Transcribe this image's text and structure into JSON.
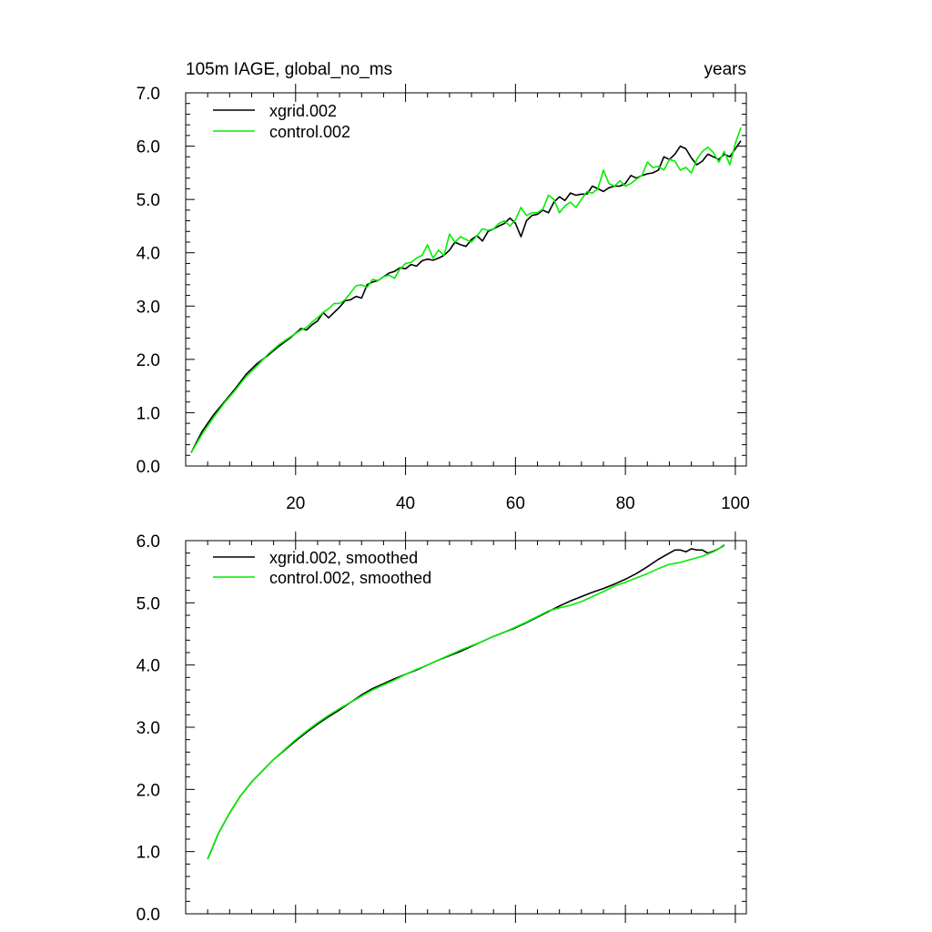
{
  "chart_data": [
    {
      "type": "line",
      "title_left": "105m IAGE, global_no_ms",
      "title_right": "years",
      "xlabel": "",
      "ylabel": "",
      "xlim": [
        0,
        102
      ],
      "ylim": [
        0,
        7
      ],
      "x_ticks": [
        20,
        40,
        60,
        80,
        100
      ],
      "x_tick_labels": [
        "20",
        "40",
        "60",
        "80",
        "100"
      ],
      "y_ticks": [
        0,
        1,
        2,
        3,
        4,
        5,
        6,
        7
      ],
      "y_tick_labels": [
        "0.0",
        "1.0",
        "2.0",
        "3.0",
        "4.0",
        "5.0",
        "6.0",
        "7.0"
      ],
      "legend_position": "top-left",
      "grid": false,
      "series": [
        {
          "name": "xgrid.002",
          "color": "#000000",
          "x": [
            1,
            3,
            5,
            7,
            9,
            11,
            13,
            15,
            17,
            19,
            21,
            22,
            23,
            24,
            25,
            26,
            27,
            28,
            29,
            30,
            31,
            32,
            33,
            34,
            35,
            36,
            37,
            38,
            39,
            40,
            41,
            42,
            43,
            44,
            45,
            46,
            47,
            48,
            49,
            50,
            51,
            52,
            53,
            54,
            55,
            56,
            57,
            58,
            59,
            60,
            61,
            62,
            63,
            64,
            65,
            66,
            67,
            68,
            69,
            70,
            71,
            72,
            73,
            74,
            75,
            76,
            77,
            78,
            79,
            80,
            81,
            82,
            83,
            84,
            85,
            86,
            87,
            88,
            89,
            90,
            91,
            92,
            93,
            94,
            95,
            96,
            97,
            98,
            99,
            100,
            101
          ],
          "y": [
            0.25,
            0.65,
            0.95,
            1.2,
            1.45,
            1.72,
            1.92,
            2.08,
            2.25,
            2.4,
            2.58,
            2.55,
            2.65,
            2.72,
            2.88,
            2.78,
            2.88,
            2.98,
            3.1,
            3.12,
            3.18,
            3.15,
            3.4,
            3.45,
            3.48,
            3.55,
            3.62,
            3.65,
            3.72,
            3.7,
            3.78,
            3.75,
            3.85,
            3.88,
            3.86,
            3.9,
            3.95,
            4.05,
            4.2,
            4.15,
            4.12,
            4.25,
            4.32,
            4.22,
            4.4,
            4.45,
            4.5,
            4.55,
            4.65,
            4.55,
            4.3,
            4.6,
            4.7,
            4.72,
            4.8,
            4.75,
            4.95,
            5.05,
            4.98,
            5.12,
            5.08,
            5.1,
            5.1,
            5.25,
            5.2,
            5.15,
            5.22,
            5.25,
            5.25,
            5.3,
            5.45,
            5.4,
            5.45,
            5.48,
            5.5,
            5.55,
            5.8,
            5.75,
            5.85,
            6.0,
            5.95,
            5.78,
            5.65,
            5.72,
            5.85,
            5.8,
            5.75,
            5.85,
            5.8,
            5.95,
            6.1
          ]
        },
        {
          "name": "control.002",
          "color": "#00ee00",
          "x": [
            1,
            3,
            5,
            7,
            9,
            11,
            13,
            15,
            17,
            19,
            21,
            22,
            23,
            24,
            25,
            26,
            27,
            28,
            29,
            30,
            31,
            32,
            33,
            34,
            35,
            36,
            37,
            38,
            39,
            40,
            41,
            42,
            43,
            44,
            45,
            46,
            47,
            48,
            49,
            50,
            51,
            52,
            53,
            54,
            55,
            56,
            57,
            58,
            59,
            60,
            61,
            62,
            63,
            64,
            65,
            66,
            67,
            68,
            69,
            70,
            71,
            72,
            73,
            74,
            75,
            76,
            77,
            78,
            79,
            80,
            81,
            82,
            83,
            84,
            85,
            86,
            87,
            88,
            89,
            90,
            91,
            92,
            93,
            94,
            95,
            96,
            97,
            98,
            99,
            100,
            101
          ],
          "y": [
            0.25,
            0.6,
            0.9,
            1.18,
            1.42,
            1.68,
            1.88,
            2.1,
            2.28,
            2.42,
            2.55,
            2.6,
            2.7,
            2.78,
            2.88,
            2.95,
            3.05,
            3.05,
            3.12,
            3.25,
            3.38,
            3.4,
            3.35,
            3.5,
            3.48,
            3.55,
            3.58,
            3.52,
            3.7,
            3.8,
            3.82,
            3.9,
            3.95,
            4.15,
            3.9,
            4.05,
            3.95,
            4.35,
            4.2,
            4.3,
            4.25,
            4.2,
            4.32,
            4.45,
            4.42,
            4.45,
            4.55,
            4.6,
            4.5,
            4.62,
            4.85,
            4.7,
            4.75,
            4.75,
            4.82,
            5.08,
            5.0,
            4.75,
            4.88,
            4.95,
            4.85,
            5.0,
            5.15,
            5.12,
            5.2,
            5.55,
            5.3,
            5.25,
            5.35,
            5.25,
            5.3,
            5.38,
            5.45,
            5.7,
            5.6,
            5.62,
            5.55,
            5.75,
            5.72,
            5.55,
            5.6,
            5.5,
            5.75,
            5.9,
            5.98,
            5.88,
            5.7,
            5.9,
            5.65,
            6.05,
            6.35
          ]
        }
      ]
    },
    {
      "type": "line",
      "title_left": "",
      "title_right": "",
      "xlabel": "",
      "ylabel": "",
      "xlim": [
        0,
        102
      ],
      "ylim": [
        0,
        6
      ],
      "x_ticks": [
        20,
        40,
        60,
        80,
        100
      ],
      "x_tick_labels": [],
      "y_ticks": [
        0,
        1,
        2,
        3,
        4,
        5,
        6
      ],
      "y_tick_labels": [
        "0.0",
        "1.0",
        "2.0",
        "3.0",
        "4.0",
        "5.0",
        "6.0"
      ],
      "legend_position": "top-left",
      "grid": false,
      "series": [
        {
          "name": "xgrid.002, smoothed",
          "color": "#000000",
          "x": [
            4,
            6,
            8,
            10,
            12,
            14,
            16,
            18,
            20,
            22,
            24,
            26,
            28,
            30,
            32,
            34,
            36,
            38,
            40,
            42,
            44,
            46,
            48,
            50,
            52,
            54,
            56,
            58,
            60,
            62,
            64,
            66,
            68,
            70,
            72,
            74,
            76,
            78,
            80,
            82,
            84,
            86,
            88,
            89,
            90,
            91,
            92,
            93,
            94,
            95,
            96,
            97,
            98
          ],
          "y": [
            0.88,
            1.3,
            1.62,
            1.9,
            2.12,
            2.3,
            2.48,
            2.63,
            2.78,
            2.92,
            3.05,
            3.17,
            3.28,
            3.4,
            3.52,
            3.62,
            3.7,
            3.78,
            3.85,
            3.92,
            4.0,
            4.08,
            4.15,
            4.22,
            4.3,
            4.38,
            4.46,
            4.53,
            4.6,
            4.68,
            4.77,
            4.86,
            4.95,
            5.03,
            5.1,
            5.17,
            5.23,
            5.3,
            5.38,
            5.47,
            5.58,
            5.7,
            5.8,
            5.85,
            5.85,
            5.82,
            5.87,
            5.85,
            5.85,
            5.8,
            5.83,
            5.87,
            5.93
          ]
        },
        {
          "name": "control.002, smoothed",
          "color": "#00ee00",
          "x": [
            4,
            6,
            8,
            10,
            12,
            14,
            16,
            18,
            20,
            22,
            24,
            26,
            28,
            30,
            32,
            34,
            36,
            38,
            40,
            42,
            44,
            46,
            48,
            50,
            52,
            54,
            56,
            58,
            60,
            62,
            64,
            66,
            68,
            70,
            72,
            74,
            76,
            78,
            80,
            82,
            84,
            86,
            88,
            90,
            92,
            94,
            96,
            98
          ],
          "y": [
            0.88,
            1.3,
            1.62,
            1.9,
            2.12,
            2.3,
            2.48,
            2.64,
            2.8,
            2.94,
            3.07,
            3.19,
            3.3,
            3.4,
            3.5,
            3.6,
            3.68,
            3.76,
            3.85,
            3.93,
            4.0,
            4.08,
            4.16,
            4.24,
            4.31,
            4.38,
            4.46,
            4.53,
            4.61,
            4.69,
            4.78,
            4.87,
            4.92,
            4.96,
            5.02,
            5.1,
            5.18,
            5.27,
            5.33,
            5.4,
            5.47,
            5.55,
            5.62,
            5.65,
            5.7,
            5.75,
            5.82,
            5.92
          ]
        }
      ]
    }
  ]
}
